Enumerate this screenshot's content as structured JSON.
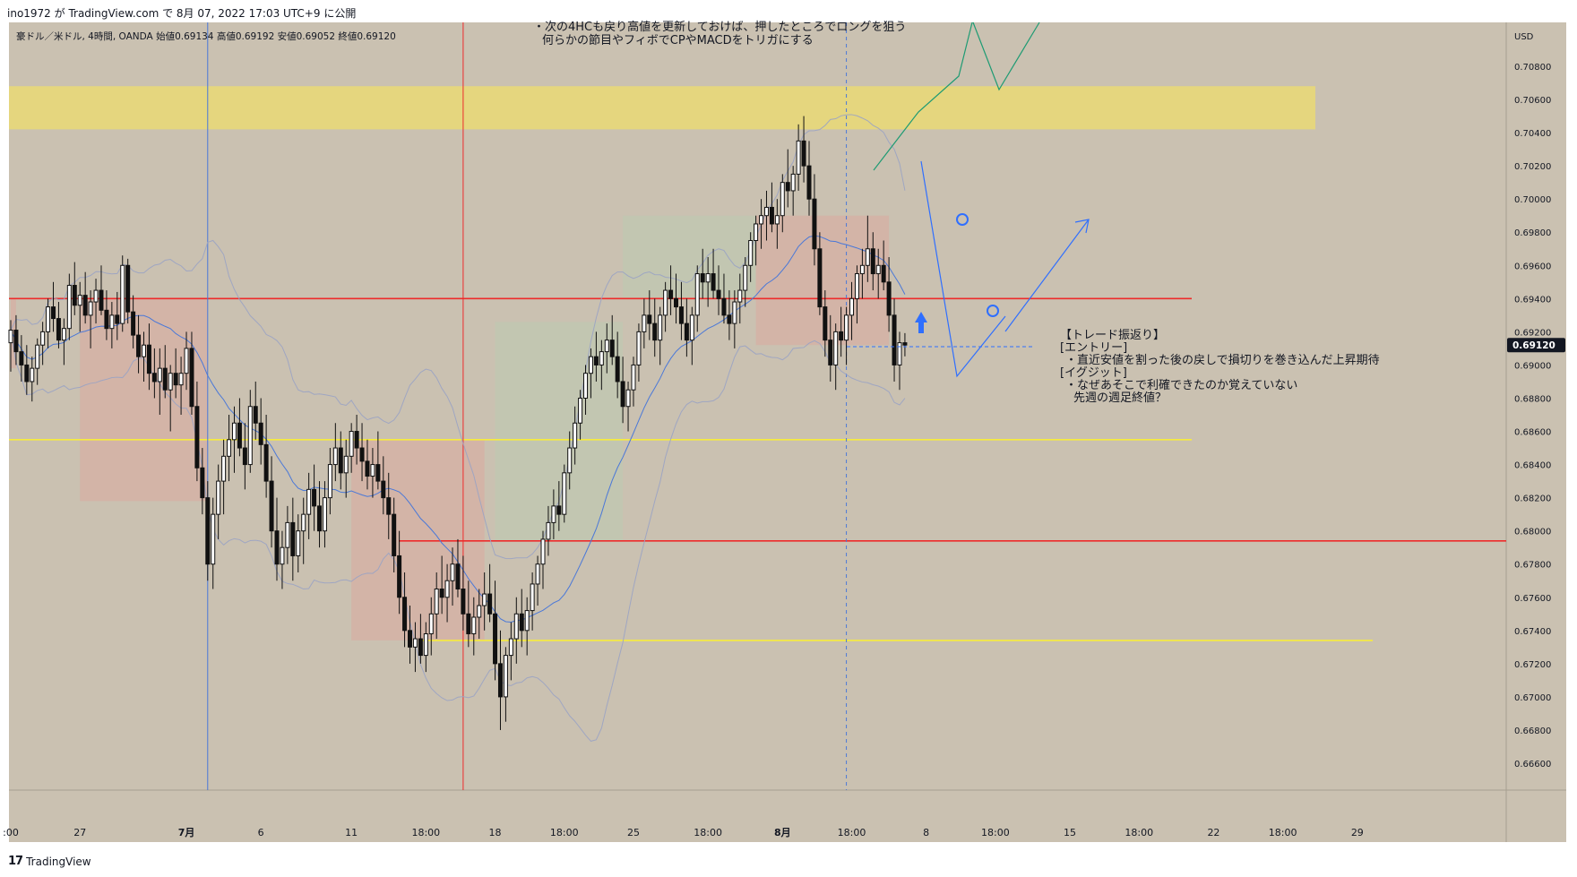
{
  "header": {
    "published_line": "ino1972 が TradingView.com で 8月 07, 2022 17:03 UTC+9 に公開"
  },
  "legend": {
    "symbol_text": "豪ドル／米ドル, 4時間, OANDA",
    "open_label": "始値",
    "open_value": "0.69134",
    "high_label": "高値",
    "high_value": "0.69192",
    "low_label": "安値",
    "low_value": "0.69052",
    "close_label": "終値",
    "close_value": "0.69120"
  },
  "footer": {
    "brand": "TradingView"
  },
  "notes": {
    "top_line1": "・次の4HCも戻り高値を更新しておけば、押したところでロングを狙う",
    "top_line2": "何らかの節目やフィボでCPやMACDをトリガにする",
    "review_title": "【トレード振返り】",
    "entry_label": "[エントリー]",
    "entry_text": "・直近安値を割った後の戻しで損切りを巻き込んだ上昇期待",
    "exit_label": "[イグジット]",
    "exit_text1": "・なぜあそこで利確できたのか覚えていない",
    "exit_text2": "先週の週足終値？"
  },
  "colors": {
    "background": "#cac1b1",
    "candle": "#111111",
    "bollinger": "#9aa3c4",
    "ma": "#4a78d8",
    "red_line": "#ee2b2b",
    "yellow_line": "#f7ec3c",
    "yellow_zone": "#e5d67e",
    "green_box": "#c1c7b2",
    "red_box": "#d5b1a6",
    "projection_green": "#1e9b73",
    "projection_blue": "#2f6fff",
    "last_price_bg": "#131722"
  },
  "chart_data": {
    "type": "candlestick",
    "symbol": "豪ドル／米ドル",
    "timeframe": "4時間",
    "broker": "OANDA",
    "currency": "USD",
    "y_axis": {
      "range": [
        0.6649,
        0.71
      ],
      "ticks": [
        "0.70800",
        "0.70600",
        "0.70400",
        "0.70200",
        "0.70000",
        "0.69800",
        "0.69600",
        "0.69400",
        "0.69200",
        "0.69000",
        "0.68800",
        "0.68600",
        "0.68400",
        "0.68200",
        "0.68000",
        "0.67800",
        "0.67600",
        "0.67400",
        "0.67200",
        "0.67000",
        "0.66800",
        "0.66600"
      ]
    },
    "x_axis": {
      "ticks": [
        {
          "label": ":00",
          "bar": 0
        },
        {
          "label": "27",
          "bar": 13
        },
        {
          "label": "7月",
          "bar": 33
        },
        {
          "label": "6",
          "bar": 47
        },
        {
          "label": "11",
          "bar": 64
        },
        {
          "label": "18:00",
          "bar": 78
        },
        {
          "label": "18",
          "bar": 91
        },
        {
          "label": "18:00",
          "bar": 104
        },
        {
          "label": "25",
          "bar": 117
        },
        {
          "label": "18:00",
          "bar": 131
        },
        {
          "label": "8月",
          "bar": 145
        },
        {
          "label": "18:00",
          "bar": 158
        },
        {
          "label": "8",
          "bar": 172
        },
        {
          "label": "18:00",
          "bar": 185
        },
        {
          "label": "15",
          "bar": 199
        },
        {
          "label": "18:00",
          "bar": 212
        },
        {
          "label": "22",
          "bar": 226
        },
        {
          "label": "18:00",
          "bar": 239
        },
        {
          "label": "29",
          "bar": 253
        }
      ]
    },
    "last_price": "0.69120",
    "horizontal_lines": [
      {
        "color": "red",
        "price": 0.694
      },
      {
        "color": "red",
        "price": 0.6794
      },
      {
        "color": "yellow",
        "price": 0.6855
      },
      {
        "color": "yellow",
        "price": 0.6734
      }
    ],
    "resistance_zone": {
      "from": 0.7042,
      "to": 0.7068
    },
    "vertical_lines": [
      {
        "color": "blue",
        "bar": 37
      },
      {
        "color": "red",
        "bar": 85
      },
      {
        "color": "blue-dashed",
        "bar": 157
      }
    ],
    "candles": [
      [
        0.69134,
        0.6927,
        0.6896,
        0.6921
      ],
      [
        0.6921,
        0.693,
        0.69,
        0.6908
      ],
      [
        0.6908,
        0.6918,
        0.689,
        0.69
      ],
      [
        0.69,
        0.6912,
        0.6882,
        0.689
      ],
      [
        0.689,
        0.6905,
        0.6878,
        0.6898
      ],
      [
        0.6898,
        0.6916,
        0.6888,
        0.6912
      ],
      [
        0.6912,
        0.6926,
        0.69,
        0.692
      ],
      [
        0.692,
        0.694,
        0.691,
        0.6935
      ],
      [
        0.6935,
        0.695,
        0.692,
        0.6928
      ],
      [
        0.6928,
        0.6938,
        0.691,
        0.6915
      ],
      [
        0.6915,
        0.6928,
        0.69,
        0.6922
      ],
      [
        0.6922,
        0.6955,
        0.6915,
        0.6948
      ],
      [
        0.6948,
        0.6962,
        0.693,
        0.6936
      ],
      [
        0.6936,
        0.695,
        0.692,
        0.6942
      ],
      [
        0.6942,
        0.6956,
        0.6925,
        0.693
      ],
      [
        0.693,
        0.6945,
        0.691,
        0.6938
      ],
      [
        0.6938,
        0.6952,
        0.6925,
        0.6945
      ],
      [
        0.6945,
        0.696,
        0.693,
        0.6933
      ],
      [
        0.6933,
        0.6945,
        0.6915,
        0.6922
      ],
      [
        0.6922,
        0.6938,
        0.691,
        0.693
      ],
      [
        0.693,
        0.6944,
        0.6915,
        0.6925
      ],
      [
        0.6925,
        0.6966,
        0.692,
        0.696
      ],
      [
        0.696,
        0.6964,
        0.6925,
        0.6932
      ],
      [
        0.6932,
        0.6942,
        0.691,
        0.6918
      ],
      [
        0.6918,
        0.693,
        0.6895,
        0.6905
      ],
      [
        0.6905,
        0.692,
        0.689,
        0.6912
      ],
      [
        0.6912,
        0.6925,
        0.6885,
        0.6895
      ],
      [
        0.6895,
        0.691,
        0.688,
        0.689
      ],
      [
        0.689,
        0.691,
        0.687,
        0.6898
      ],
      [
        0.6898,
        0.6912,
        0.688,
        0.6885
      ],
      [
        0.6885,
        0.69,
        0.686,
        0.6895
      ],
      [
        0.6895,
        0.691,
        0.688,
        0.6888
      ],
      [
        0.6888,
        0.6905,
        0.687,
        0.6895
      ],
      [
        0.6895,
        0.692,
        0.6885,
        0.691
      ],
      [
        0.691,
        0.692,
        0.687,
        0.6875
      ],
      [
        0.6875,
        0.689,
        0.683,
        0.6838
      ],
      [
        0.6838,
        0.685,
        0.681,
        0.682
      ],
      [
        0.682,
        0.683,
        0.677,
        0.678
      ],
      [
        0.678,
        0.682,
        0.6765,
        0.681
      ],
      [
        0.681,
        0.684,
        0.6795,
        0.683
      ],
      [
        0.683,
        0.6855,
        0.681,
        0.6845
      ],
      [
        0.6845,
        0.687,
        0.683,
        0.6855
      ],
      [
        0.6855,
        0.6875,
        0.6835,
        0.6865
      ],
      [
        0.6865,
        0.688,
        0.6845,
        0.685
      ],
      [
        0.685,
        0.6865,
        0.6825,
        0.684
      ],
      [
        0.684,
        0.6885,
        0.6835,
        0.6875
      ],
      [
        0.6875,
        0.689,
        0.6855,
        0.6865
      ],
      [
        0.6865,
        0.688,
        0.684,
        0.6852
      ],
      [
        0.6852,
        0.687,
        0.682,
        0.683
      ],
      [
        0.683,
        0.6845,
        0.679,
        0.68
      ],
      [
        0.68,
        0.682,
        0.677,
        0.678
      ],
      [
        0.678,
        0.68,
        0.6765,
        0.679
      ],
      [
        0.679,
        0.6815,
        0.678,
        0.6805
      ],
      [
        0.6805,
        0.682,
        0.677,
        0.6785
      ],
      [
        0.6785,
        0.681,
        0.6775,
        0.68
      ],
      [
        0.68,
        0.682,
        0.678,
        0.681
      ],
      [
        0.681,
        0.6835,
        0.6795,
        0.6825
      ],
      [
        0.6825,
        0.684,
        0.68,
        0.6815
      ],
      [
        0.6815,
        0.683,
        0.679,
        0.68
      ],
      [
        0.68,
        0.683,
        0.679,
        0.682
      ],
      [
        0.682,
        0.685,
        0.681,
        0.684
      ],
      [
        0.684,
        0.6865,
        0.683,
        0.685
      ],
      [
        0.685,
        0.686,
        0.6825,
        0.6835
      ],
      [
        0.6835,
        0.6855,
        0.682,
        0.6845
      ],
      [
        0.6845,
        0.6865,
        0.6835,
        0.686
      ],
      [
        0.686,
        0.687,
        0.684,
        0.685
      ],
      [
        0.685,
        0.6865,
        0.683,
        0.6842
      ],
      [
        0.6842,
        0.6855,
        0.6825,
        0.6833
      ],
      [
        0.6833,
        0.685,
        0.682,
        0.684
      ],
      [
        0.684,
        0.686,
        0.6825,
        0.683
      ],
      [
        0.683,
        0.6845,
        0.681,
        0.682
      ],
      [
        0.682,
        0.6835,
        0.6795,
        0.681
      ],
      [
        0.681,
        0.682,
        0.6775,
        0.6785
      ],
      [
        0.6785,
        0.68,
        0.675,
        0.676
      ],
      [
        0.676,
        0.6775,
        0.673,
        0.674
      ],
      [
        0.674,
        0.6755,
        0.672,
        0.673
      ],
      [
        0.673,
        0.6745,
        0.6715,
        0.6735
      ],
      [
        0.6735,
        0.675,
        0.672,
        0.6725
      ],
      [
        0.6725,
        0.6745,
        0.6715,
        0.6738
      ],
      [
        0.6738,
        0.676,
        0.6725,
        0.675
      ],
      [
        0.675,
        0.6775,
        0.6735,
        0.6765
      ],
      [
        0.6765,
        0.6785,
        0.675,
        0.676
      ],
      [
        0.676,
        0.678,
        0.6745,
        0.677
      ],
      [
        0.677,
        0.679,
        0.6755,
        0.678
      ],
      [
        0.678,
        0.6795,
        0.676,
        0.6765
      ],
      [
        0.6765,
        0.6785,
        0.674,
        0.675
      ],
      [
        0.675,
        0.677,
        0.673,
        0.6738
      ],
      [
        0.6738,
        0.676,
        0.6725,
        0.6748
      ],
      [
        0.6748,
        0.6765,
        0.6735,
        0.6755
      ],
      [
        0.6755,
        0.6775,
        0.674,
        0.6762
      ],
      [
        0.6762,
        0.678,
        0.6745,
        0.675
      ],
      [
        0.675,
        0.677,
        0.671,
        0.672
      ],
      [
        0.672,
        0.674,
        0.668,
        0.67
      ],
      [
        0.67,
        0.673,
        0.6685,
        0.6725
      ],
      [
        0.6725,
        0.6745,
        0.671,
        0.6735
      ],
      [
        0.6735,
        0.676,
        0.672,
        0.675
      ],
      [
        0.675,
        0.6765,
        0.673,
        0.674
      ],
      [
        0.674,
        0.676,
        0.6725,
        0.6752
      ],
      [
        0.6752,
        0.6775,
        0.674,
        0.6768
      ],
      [
        0.6768,
        0.6785,
        0.6755,
        0.678
      ],
      [
        0.678,
        0.68,
        0.6765,
        0.6795
      ],
      [
        0.6795,
        0.6815,
        0.6785,
        0.6805
      ],
      [
        0.6805,
        0.6825,
        0.6795,
        0.6815
      ],
      [
        0.6815,
        0.683,
        0.68,
        0.681
      ],
      [
        0.681,
        0.684,
        0.6805,
        0.6835
      ],
      [
        0.6835,
        0.686,
        0.6825,
        0.685
      ],
      [
        0.685,
        0.6875,
        0.684,
        0.6865
      ],
      [
        0.6865,
        0.6885,
        0.6855,
        0.688
      ],
      [
        0.688,
        0.69,
        0.687,
        0.6895
      ],
      [
        0.6895,
        0.691,
        0.688,
        0.6905
      ],
      [
        0.6905,
        0.692,
        0.689,
        0.69
      ],
      [
        0.69,
        0.6915,
        0.6885,
        0.6908
      ],
      [
        0.6908,
        0.6925,
        0.6895,
        0.6915
      ],
      [
        0.6915,
        0.693,
        0.69,
        0.6905
      ],
      [
        0.6905,
        0.692,
        0.688,
        0.689
      ],
      [
        0.689,
        0.6905,
        0.6865,
        0.6875
      ],
      [
        0.6875,
        0.689,
        0.686,
        0.6885
      ],
      [
        0.6885,
        0.6905,
        0.6875,
        0.69
      ],
      [
        0.69,
        0.6925,
        0.689,
        0.692
      ],
      [
        0.692,
        0.694,
        0.691,
        0.693
      ],
      [
        0.693,
        0.6945,
        0.6915,
        0.6925
      ],
      [
        0.6925,
        0.694,
        0.6905,
        0.6915
      ],
      [
        0.6915,
        0.6935,
        0.69,
        0.693
      ],
      [
        0.693,
        0.695,
        0.692,
        0.6945
      ],
      [
        0.6945,
        0.696,
        0.693,
        0.694
      ],
      [
        0.694,
        0.6955,
        0.6925,
        0.6935
      ],
      [
        0.6935,
        0.695,
        0.6915,
        0.6925
      ],
      [
        0.6925,
        0.694,
        0.6905,
        0.6915
      ],
      [
        0.6915,
        0.6935,
        0.69,
        0.693
      ],
      [
        0.693,
        0.696,
        0.692,
        0.6955
      ],
      [
        0.6955,
        0.697,
        0.694,
        0.695
      ],
      [
        0.695,
        0.6965,
        0.6935,
        0.6955
      ],
      [
        0.6955,
        0.697,
        0.694,
        0.6945
      ],
      [
        0.6945,
        0.696,
        0.693,
        0.694
      ],
      [
        0.694,
        0.6955,
        0.6925,
        0.693
      ],
      [
        0.693,
        0.6945,
        0.6915,
        0.6925
      ],
      [
        0.6925,
        0.6945,
        0.691,
        0.6938
      ],
      [
        0.6938,
        0.6955,
        0.6925,
        0.6945
      ],
      [
        0.6945,
        0.6965,
        0.6935,
        0.696
      ],
      [
        0.696,
        0.698,
        0.695,
        0.6975
      ],
      [
        0.6975,
        0.699,
        0.696,
        0.6985
      ],
      [
        0.6985,
        0.7,
        0.697,
        0.699
      ],
      [
        0.699,
        0.7005,
        0.6975,
        0.6995
      ],
      [
        0.6995,
        0.701,
        0.698,
        0.6985
      ],
      [
        0.6985,
        0.7,
        0.697,
        0.699
      ],
      [
        0.699,
        0.7015,
        0.698,
        0.701
      ],
      [
        0.701,
        0.703,
        0.6995,
        0.7005
      ],
      [
        0.7005,
        0.702,
        0.699,
        0.7015
      ],
      [
        0.7015,
        0.7045,
        0.7005,
        0.7035
      ],
      [
        0.7035,
        0.705,
        0.701,
        0.702
      ],
      [
        0.702,
        0.7035,
        0.699,
        0.7
      ],
      [
        0.7,
        0.7015,
        0.696,
        0.697
      ],
      [
        0.697,
        0.698,
        0.693,
        0.6935
      ],
      [
        0.6935,
        0.6945,
        0.6905,
        0.6915
      ],
      [
        0.6915,
        0.693,
        0.689,
        0.69
      ],
      [
        0.69,
        0.6925,
        0.6885,
        0.692
      ],
      [
        0.692,
        0.6935,
        0.6905,
        0.6915
      ],
      [
        0.6915,
        0.6935,
        0.69,
        0.693
      ],
      [
        0.693,
        0.695,
        0.6915,
        0.694
      ],
      [
        0.694,
        0.696,
        0.6925,
        0.6955
      ],
      [
        0.6955,
        0.697,
        0.694,
        0.696
      ],
      [
        0.696,
        0.699,
        0.695,
        0.697
      ],
      [
        0.697,
        0.698,
        0.6945,
        0.6955
      ],
      [
        0.6955,
        0.697,
        0.694,
        0.696
      ],
      [
        0.696,
        0.6975,
        0.6945,
        0.695
      ],
      [
        0.695,
        0.6965,
        0.692,
        0.693
      ],
      [
        0.693,
        0.694,
        0.689,
        0.69
      ],
      [
        0.69,
        0.692,
        0.6885,
        0.69134
      ],
      [
        0.69134,
        0.69192,
        0.69052,
        0.6912
      ]
    ]
  }
}
